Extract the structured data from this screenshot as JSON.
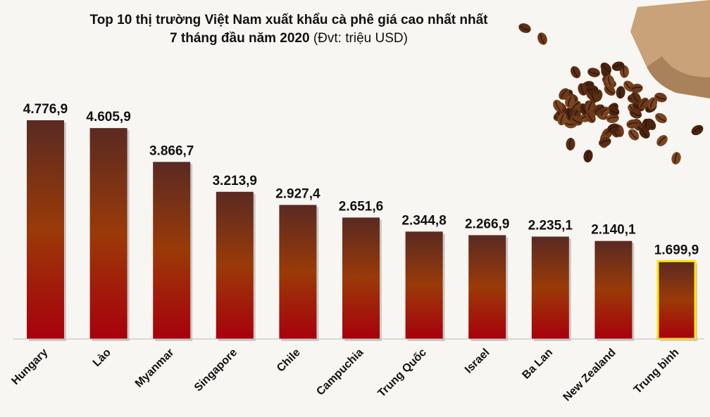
{
  "chart_data": {
    "type": "bar",
    "title": "Top 10 thị trường Việt Nam xuất khẩu cà phê giá cao nhất nhất",
    "subtitle_bold": "7 tháng đầu năm 2020",
    "subtitle_unit": "(Đvt: triệu USD)",
    "categories": [
      "Hungary",
      "Lào",
      "Myanmar",
      "Singapore",
      "Chile",
      "Campuchia",
      "Trung Quốc",
      "Israel",
      "Ba Lan",
      "New Zealand",
      "Trung bình"
    ],
    "values": [
      4776.9,
      4605.9,
      3866.7,
      3213.9,
      2927.4,
      2651.6,
      2344.8,
      2266.9,
      2235.1,
      2140.1,
      1699.9
    ],
    "value_labels": [
      "4.776,9",
      "4.605,9",
      "3.866,7",
      "3.213,9",
      "2.927,4",
      "2.651,6",
      "2.344,8",
      "2.266,9",
      "2.235,1",
      "2.140,1",
      "1.699,9"
    ],
    "highlight_index": 10,
    "highlight_color": "#ffe600",
    "bar_gradient": [
      "#5a2a22",
      "#9a3a08",
      "#a8000c"
    ],
    "ylim": [
      0,
      4776.9
    ],
    "grid": false
  }
}
